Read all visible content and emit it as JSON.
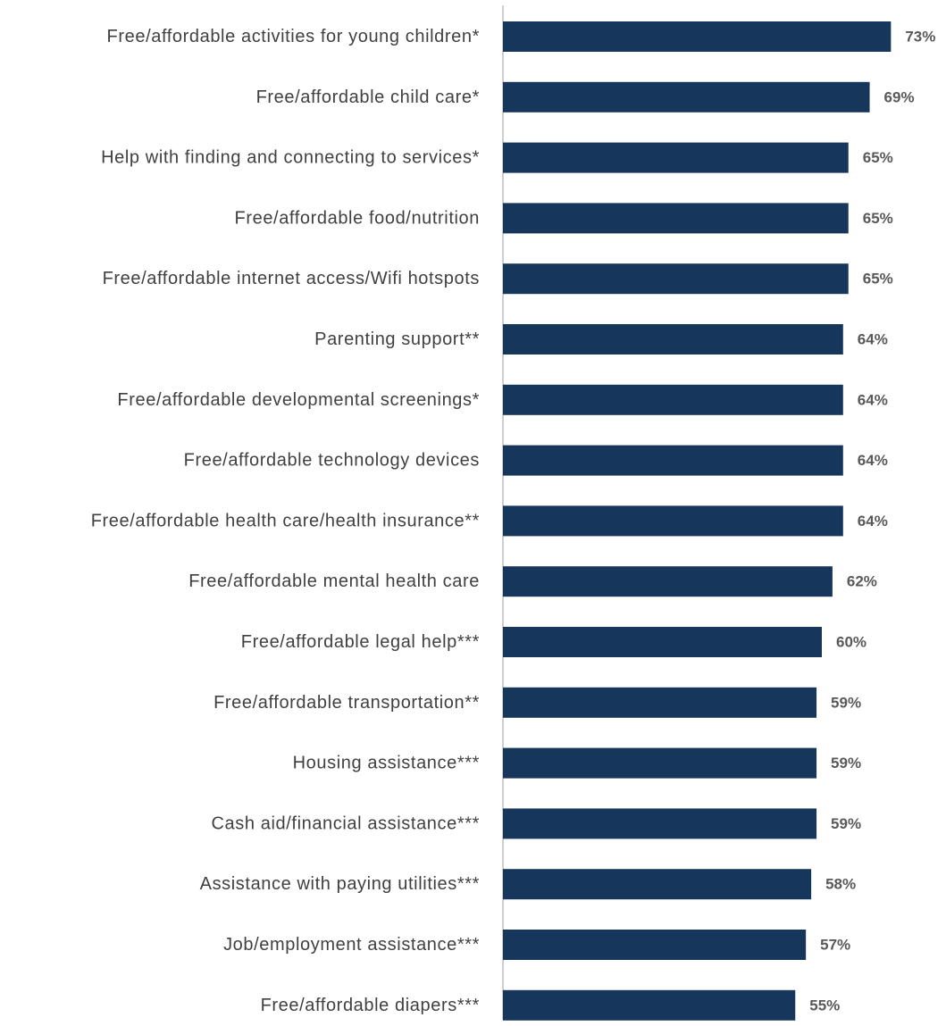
{
  "chart_data": {
    "type": "bar",
    "orientation": "horizontal",
    "title": "",
    "xlabel": "",
    "ylabel": "",
    "xlim": [
      0,
      100
    ],
    "grid": false,
    "legend": "none",
    "value_suffix": "%",
    "bar_color": "#16365c",
    "axis_color": "#bfbfbf",
    "categories": [
      "Free/affordable activities for young children*",
      "Free/affordable child care*",
      "Help with finding and connecting to services*",
      "Free/affordable food/nutrition",
      "Free/affordable internet access/Wifi hotspots",
      "Parenting support**",
      "Free/affordable developmental screenings*",
      "Free/affordable technology devices",
      "Free/affordable health care/health insurance**",
      "Free/affordable mental health care",
      "Free/affordable legal help***",
      "Free/affordable transportation**",
      "Housing assistance***",
      "Cash aid/financial assistance***",
      "Assistance with paying utilities***",
      "Job/employment assistance***",
      "Free/affordable diapers***"
    ],
    "values": [
      73,
      69,
      65,
      65,
      65,
      64,
      64,
      64,
      64,
      62,
      60,
      59,
      59,
      59,
      58,
      57,
      55
    ],
    "data_labels": [
      "73%",
      "69%",
      "65%",
      "65%",
      "65%",
      "64%",
      "64%",
      "64%",
      "64%",
      "62%",
      "60%",
      "59%",
      "59%",
      "59%",
      "58%",
      "57%",
      "55%"
    ]
  }
}
